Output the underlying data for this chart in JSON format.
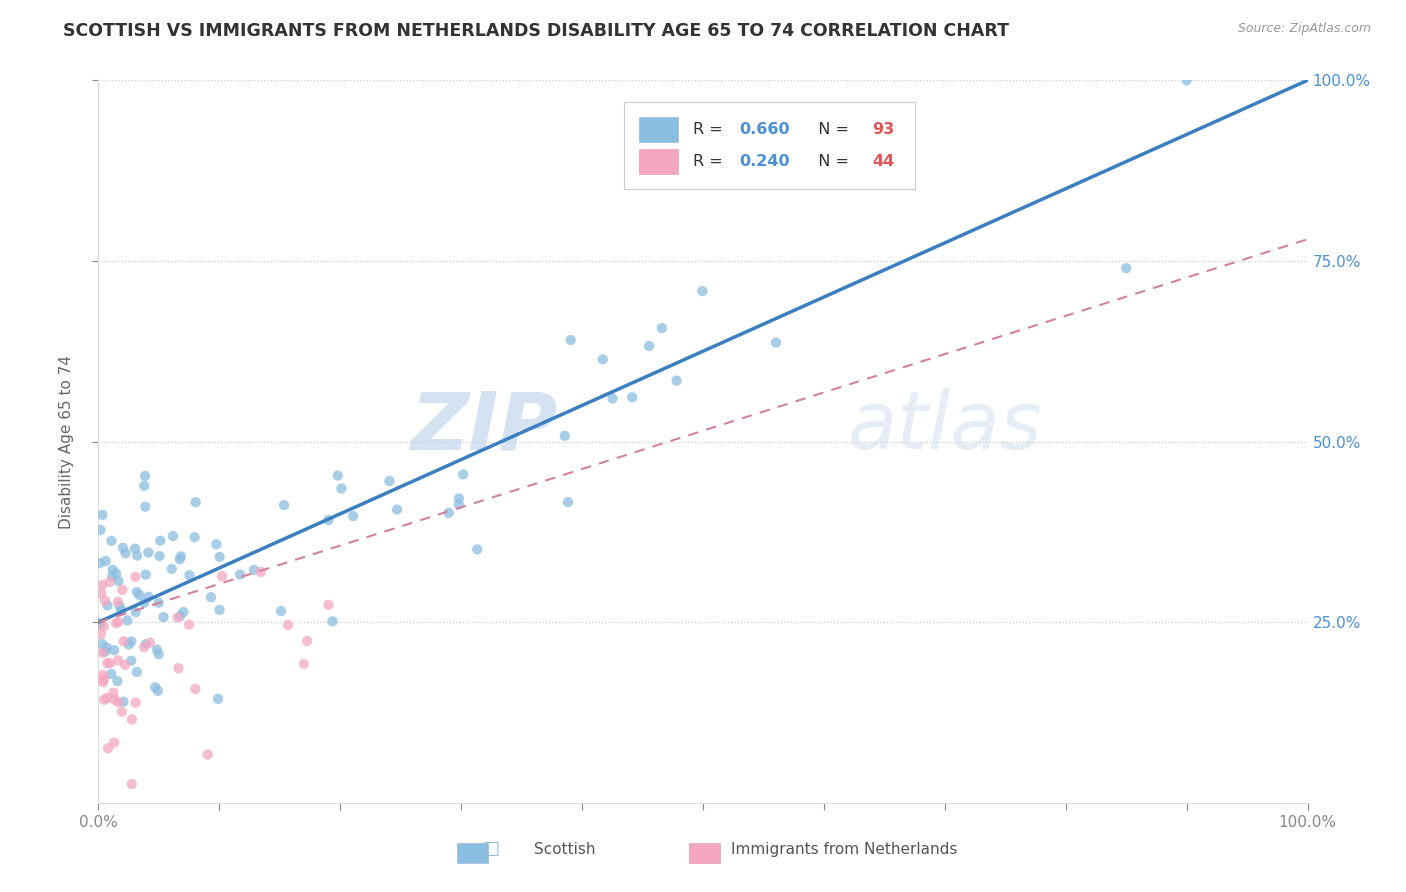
{
  "title": "SCOTTISH VS IMMIGRANTS FROM NETHERLANDS DISABILITY AGE 65 TO 74 CORRELATION CHART",
  "source": "Source: ZipAtlas.com",
  "ylabel": "Disability Age 65 to 74",
  "xlim": [
    0,
    1
  ],
  "ylim": [
    0,
    1
  ],
  "legend_r1": "R = 0.660",
  "legend_n1": "N = 93",
  "legend_r2": "R = 0.240",
  "legend_n2": "N = 44",
  "blue_color": "#8bbde0",
  "pink_color": "#f4a6c0",
  "blue_line_color": "#3a7fc1",
  "pink_line_color": "#d4829a",
  "watermark_zip": "ZIP",
  "watermark_atlas": "atlas",
  "background_color": "#ffffff",
  "title_fontsize": 12.5,
  "scatter_alpha": 0.75,
  "scatter_size": 55,
  "blue_trend_x": [
    0.0,
    1.0
  ],
  "blue_trend_y": [
    0.25,
    1.0
  ],
  "pink_trend_x": [
    0.0,
    1.0
  ],
  "pink_trend_y": [
    0.25,
    0.78
  ]
}
